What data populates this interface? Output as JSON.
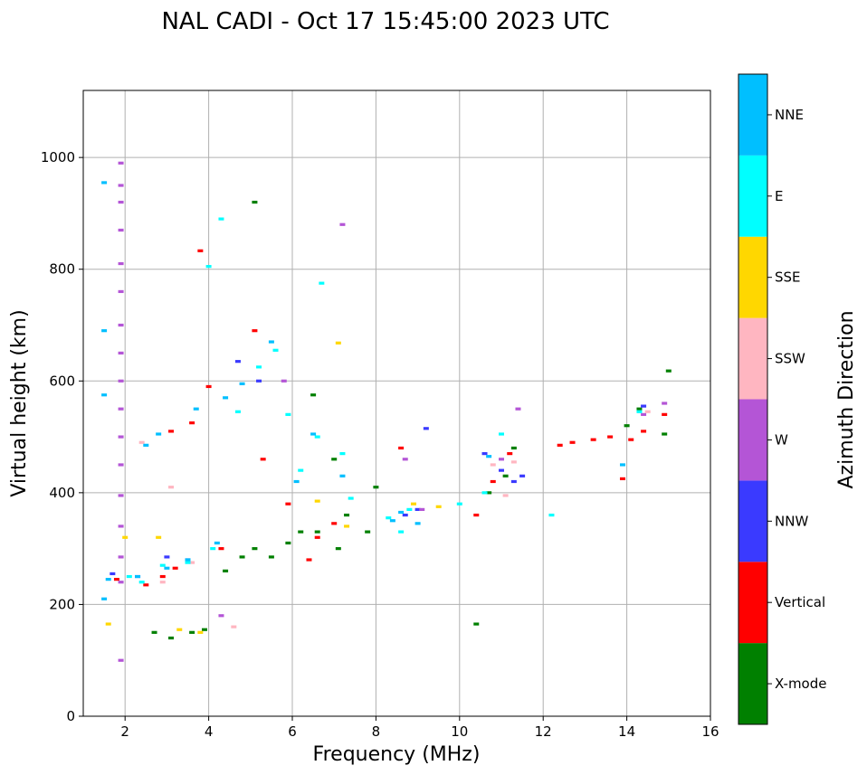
{
  "chart_data": {
    "type": "scatter",
    "title": "NAL CADI - Oct 17 15:45:00 2023 UTC",
    "xlabel": "Frequency (MHz)",
    "ylabel": "Virtual height (km)",
    "xlim": [
      1,
      16
    ],
    "ylim": [
      0,
      1120
    ],
    "xticks": [
      2,
      4,
      6,
      8,
      10,
      12,
      14,
      16
    ],
    "yticks": [
      0,
      200,
      400,
      600,
      800,
      1000
    ],
    "grid": true,
    "colorbar": {
      "label": "Azimuth Direction",
      "categories": [
        {
          "name": "X-mode",
          "color": "#008000"
        },
        {
          "name": "Vertical",
          "color": "#ff0000"
        },
        {
          "name": "NNW",
          "color": "#3a3aff"
        },
        {
          "name": "W",
          "color": "#b455d6"
        },
        {
          "name": "SSW",
          "color": "#ffb6c1"
        },
        {
          "name": "SSE",
          "color": "#ffd700"
        },
        {
          "name": "E",
          "color": "#00ffff"
        },
        {
          "name": "NNE",
          "color": "#00bfff"
        }
      ]
    },
    "series": [
      {
        "name": "X-mode",
        "points": [
          [
            2.7,
            150
          ],
          [
            3.1,
            140
          ],
          [
            3.6,
            150
          ],
          [
            3.9,
            155
          ],
          [
            4.4,
            260
          ],
          [
            4.8,
            285
          ],
          [
            5.1,
            300
          ],
          [
            5.5,
            285
          ],
          [
            5.9,
            310
          ],
          [
            6.2,
            330
          ],
          [
            6.6,
            330
          ],
          [
            7.1,
            300
          ],
          [
            7.3,
            360
          ],
          [
            7.8,
            330
          ],
          [
            8.0,
            410
          ],
          [
            6.5,
            575
          ],
          [
            7.0,
            460
          ],
          [
            5.1,
            920
          ],
          [
            10.4,
            165
          ],
          [
            10.7,
            400
          ],
          [
            11.1,
            430
          ],
          [
            11.3,
            480
          ],
          [
            14.0,
            520
          ],
          [
            14.3,
            550
          ],
          [
            14.9,
            505
          ],
          [
            15.0,
            618
          ]
        ]
      },
      {
        "name": "Vertical",
        "points": [
          [
            1.8,
            245
          ],
          [
            2.5,
            235
          ],
          [
            2.9,
            250
          ],
          [
            3.2,
            265
          ],
          [
            3.1,
            510
          ],
          [
            3.6,
            525
          ],
          [
            4.0,
            590
          ],
          [
            3.8,
            833
          ],
          [
            4.3,
            300
          ],
          [
            5.1,
            690
          ],
          [
            5.3,
            460
          ],
          [
            5.9,
            380
          ],
          [
            6.4,
            280
          ],
          [
            6.6,
            320
          ],
          [
            7.0,
            345
          ],
          [
            8.6,
            480
          ],
          [
            10.4,
            360
          ],
          [
            10.8,
            420
          ],
          [
            11.2,
            470
          ],
          [
            12.4,
            485
          ],
          [
            12.7,
            490
          ],
          [
            13.2,
            495
          ],
          [
            13.6,
            500
          ],
          [
            14.1,
            495
          ],
          [
            14.4,
            510
          ],
          [
            14.9,
            540
          ],
          [
            13.9,
            425
          ]
        ]
      },
      {
        "name": "NNW",
        "points": [
          [
            1.7,
            255
          ],
          [
            2.3,
            250
          ],
          [
            3.0,
            285
          ],
          [
            3.5,
            280
          ],
          [
            4.7,
            635
          ],
          [
            5.2,
            600
          ],
          [
            8.7,
            360
          ],
          [
            9.0,
            370
          ],
          [
            9.2,
            515
          ],
          [
            10.6,
            470
          ],
          [
            11.0,
            440
          ],
          [
            11.3,
            420
          ],
          [
            11.5,
            430
          ],
          [
            14.4,
            555
          ]
        ]
      },
      {
        "name": "W",
        "points": [
          [
            1.9,
            990
          ],
          [
            1.9,
            950
          ],
          [
            1.9,
            920
          ],
          [
            1.9,
            870
          ],
          [
            1.9,
            810
          ],
          [
            1.9,
            760
          ],
          [
            1.9,
            700
          ],
          [
            1.9,
            650
          ],
          [
            1.9,
            600
          ],
          [
            1.9,
            550
          ],
          [
            1.9,
            500
          ],
          [
            1.9,
            450
          ],
          [
            1.9,
            395
          ],
          [
            1.9,
            340
          ],
          [
            1.9,
            285
          ],
          [
            1.9,
            240
          ],
          [
            1.9,
            100
          ],
          [
            4.3,
            180
          ],
          [
            7.2,
            880
          ],
          [
            5.8,
            600
          ],
          [
            8.7,
            460
          ],
          [
            9.1,
            370
          ],
          [
            11.0,
            460
          ],
          [
            11.4,
            550
          ],
          [
            14.4,
            540
          ],
          [
            14.9,
            560
          ]
        ]
      },
      {
        "name": "SSW",
        "points": [
          [
            2.4,
            490
          ],
          [
            2.9,
            240
          ],
          [
            3.1,
            410
          ],
          [
            3.6,
            275
          ],
          [
            4.6,
            160
          ],
          [
            10.8,
            450
          ],
          [
            11.1,
            395
          ],
          [
            11.3,
            455
          ],
          [
            14.5,
            545
          ]
        ]
      },
      {
        "name": "SSE",
        "points": [
          [
            1.6,
            165
          ],
          [
            2.0,
            320
          ],
          [
            2.8,
            320
          ],
          [
            3.3,
            155
          ],
          [
            3.8,
            150
          ],
          [
            6.6,
            385
          ],
          [
            7.1,
            668
          ],
          [
            7.3,
            340
          ],
          [
            8.9,
            380
          ],
          [
            9.5,
            375
          ]
        ]
      },
      {
        "name": "E",
        "points": [
          [
            2.1,
            250
          ],
          [
            2.4,
            240
          ],
          [
            2.9,
            270
          ],
          [
            3.5,
            275
          ],
          [
            4.0,
            805
          ],
          [
            4.3,
            890
          ],
          [
            4.1,
            300
          ],
          [
            4.7,
            545
          ],
          [
            5.2,
            625
          ],
          [
            5.6,
            655
          ],
          [
            5.9,
            540
          ],
          [
            6.2,
            440
          ],
          [
            6.6,
            500
          ],
          [
            6.7,
            775
          ],
          [
            7.2,
            470
          ],
          [
            7.4,
            390
          ],
          [
            8.3,
            355
          ],
          [
            8.6,
            330
          ],
          [
            8.8,
            370
          ],
          [
            10.0,
            380
          ],
          [
            10.6,
            400
          ],
          [
            11.0,
            505
          ],
          [
            12.2,
            360
          ],
          [
            14.3,
            545
          ]
        ]
      },
      {
        "name": "NNE",
        "points": [
          [
            1.5,
            210
          ],
          [
            1.6,
            245
          ],
          [
            1.5,
            575
          ],
          [
            1.5,
            690
          ],
          [
            1.5,
            955
          ],
          [
            2.3,
            250
          ],
          [
            2.5,
            485
          ],
          [
            2.8,
            505
          ],
          [
            3.0,
            265
          ],
          [
            3.5,
            280
          ],
          [
            3.7,
            550
          ],
          [
            4.2,
            310
          ],
          [
            4.4,
            570
          ],
          [
            4.8,
            595
          ],
          [
            5.5,
            670
          ],
          [
            6.1,
            420
          ],
          [
            6.5,
            505
          ],
          [
            7.2,
            430
          ],
          [
            8.4,
            350
          ],
          [
            8.6,
            365
          ],
          [
            9.0,
            345
          ],
          [
            10.7,
            465
          ],
          [
            13.9,
            450
          ]
        ]
      }
    ]
  }
}
